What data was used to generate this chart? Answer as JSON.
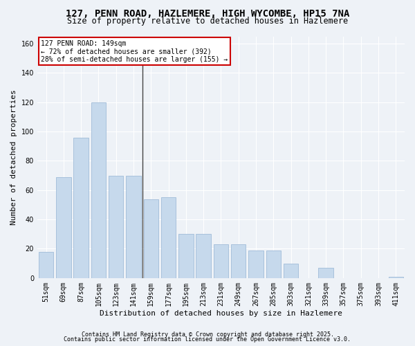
{
  "title1": "127, PENN ROAD, HAZLEMERE, HIGH WYCOMBE, HP15 7NA",
  "title2": "Size of property relative to detached houses in Hazlemere",
  "xlabel": "Distribution of detached houses by size in Hazlemere",
  "ylabel": "Number of detached properties",
  "categories": [
    "51sqm",
    "69sqm",
    "87sqm",
    "105sqm",
    "123sqm",
    "141sqm",
    "159sqm",
    "177sqm",
    "195sqm",
    "213sqm",
    "231sqm",
    "249sqm",
    "267sqm",
    "285sqm",
    "303sqm",
    "321sqm",
    "339sqm",
    "357sqm",
    "375sqm",
    "393sqm",
    "411sqm"
  ],
  "values": [
    18,
    69,
    96,
    120,
    70,
    70,
    54,
    55,
    30,
    30,
    23,
    23,
    19,
    19,
    10,
    0,
    7,
    0,
    0,
    0,
    1
  ],
  "bar_color": "#c6d9ec",
  "bar_edge_color": "#a0bcd8",
  "annotation_text1": "127 PENN ROAD: 149sqm",
  "annotation_text2": "← 72% of detached houses are smaller (392)",
  "annotation_text3": "28% of semi-detached houses are larger (155) →",
  "annotation_box_color": "#ffffff",
  "annotation_box_edge_color": "#cc0000",
  "prop_line_color": "#444444",
  "ylim": [
    0,
    165
  ],
  "yticks": [
    0,
    20,
    40,
    60,
    80,
    100,
    120,
    140,
    160
  ],
  "footer1": "Contains HM Land Registry data © Crown copyright and database right 2025.",
  "footer2": "Contains public sector information licensed under the Open Government Licence v3.0.",
  "background_color": "#eef2f7",
  "grid_color": "#ffffff",
  "title_fontsize": 10,
  "subtitle_fontsize": 8.5,
  "ylabel_fontsize": 8,
  "xlabel_fontsize": 8,
  "tick_fontsize": 7,
  "ann_fontsize": 7,
  "footer_fontsize": 6
}
